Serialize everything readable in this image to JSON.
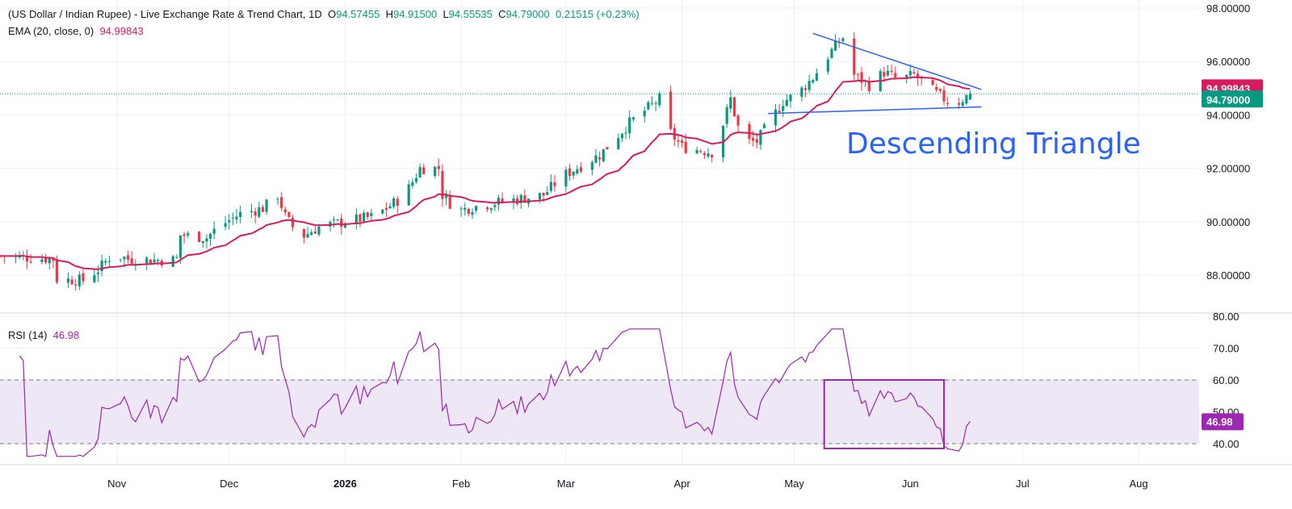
{
  "legend": {
    "symbol": "(US Dollar / Indian Rupee) - Live Exchange Rate & Trend Chart, 1D",
    "o_label": "O",
    "o_value": "94.57455",
    "h_label": "H",
    "h_value": "94.91500",
    "l_label": "L",
    "l_value": "94.55535",
    "c_label": "C",
    "c_value": "94.79000",
    "change": "0.21515 (+0.23%)",
    "ema_label": "EMA (20, close, 0)",
    "ema_value": "94.99843",
    "rsi_label": "RSI (14)",
    "rsi_value": "46.98"
  },
  "colors": {
    "up": "#089981",
    "down": "#f23645",
    "ema": "#d81b60",
    "rsi": "#9c27b0",
    "rsi_band": "#ede7f6",
    "annotation": "#2962ff",
    "grid": "#eef0f3"
  },
  "annotation": {
    "text": "Descending Triangle"
  },
  "chart_data": [
    {
      "type": "candlestick",
      "title": "(US Dollar / Indian Rupee) - Live Exchange Rate & Trend Chart, 1D",
      "ylim": [
        86.6,
        98.0
      ],
      "y_ticks": [
        "98.00000",
        "96.00000",
        "94.00000",
        "92.00000",
        "90.00000",
        "88.00000"
      ],
      "x_ticks": [
        "Nov",
        "Dec",
        "2026",
        "Feb",
        "Mar",
        "Apr",
        "May",
        "Jun",
        "Jul",
        "Aug"
      ],
      "last_price": "94.79000",
      "last_ema": "94.99843",
      "grid": true,
      "trendlines": [
        {
          "name": "upper",
          "from": {
            "day": 217,
            "price": 97.05
          },
          "to": {
            "day": 262,
            "price": 94.95
          }
        },
        {
          "name": "lower",
          "from": {
            "day": 205,
            "price": 94.05
          },
          "to": {
            "day": 262,
            "price": 94.3
          }
        }
      ]
    },
    {
      "type": "line",
      "title": "RSI (14)",
      "ylim": [
        35,
        80
      ],
      "y_ticks": [
        "80.00",
        "70.00",
        "60.00",
        "50.00",
        "40.00"
      ],
      "bands": [
        40,
        60
      ],
      "last_value": "46.98",
      "grid": true,
      "highlight_box": {
        "from_day": 220,
        "to_day": 252,
        "low": 38.5,
        "high": 60
      }
    }
  ]
}
